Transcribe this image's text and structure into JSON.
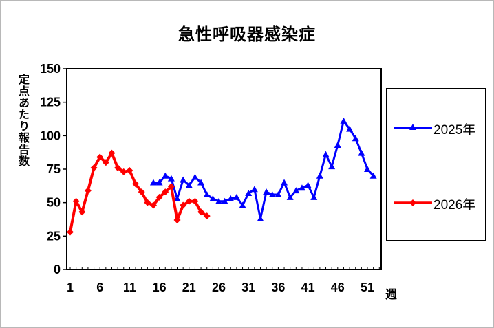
{
  "chart_data": {
    "type": "line",
    "title": "急性呼吸器感染症",
    "xlabel": "週",
    "ylabel": "定点あたり報告数",
    "xlim": [
      1,
      53
    ],
    "ylim": [
      0,
      150
    ],
    "yticks": [
      0,
      25,
      50,
      75,
      100,
      125,
      150
    ],
    "xticks": [
      1,
      6,
      11,
      16,
      21,
      26,
      31,
      36,
      41,
      46,
      51
    ],
    "legend_position": "right",
    "series": [
      {
        "name": "2025年",
        "color": "#0000ff",
        "marker": "triangle",
        "x": [
          15,
          16,
          17,
          18,
          19,
          20,
          21,
          22,
          23,
          24,
          25,
          26,
          27,
          28,
          29,
          30,
          31,
          32,
          33,
          34,
          35,
          36,
          37,
          38,
          39,
          40,
          41,
          42,
          43,
          44,
          45,
          46,
          47,
          48,
          49,
          50,
          51,
          52
        ],
        "y": [
          65,
          65,
          70,
          68,
          53,
          67,
          63,
          69,
          65,
          56,
          53,
          51,
          51,
          53,
          54,
          48,
          57,
          60,
          38,
          58,
          56,
          56,
          65,
          54,
          59,
          61,
          63,
          54,
          70,
          86,
          77,
          93,
          111,
          105,
          98,
          87,
          75,
          70
        ]
      },
      {
        "name": "2026年",
        "color": "#ff0000",
        "marker": "diamond",
        "x": [
          1,
          2,
          3,
          4,
          5,
          6,
          7,
          8,
          9,
          10,
          11,
          12,
          13,
          14,
          15,
          16,
          17,
          18,
          19,
          20,
          21,
          22,
          23,
          24
        ],
        "y": [
          28,
          51,
          43,
          59,
          76,
          84,
          80,
          87,
          76,
          73,
          74,
          64,
          58,
          50,
          48,
          54,
          58,
          62,
          37,
          48,
          51,
          51,
          43,
          40
        ]
      }
    ]
  }
}
